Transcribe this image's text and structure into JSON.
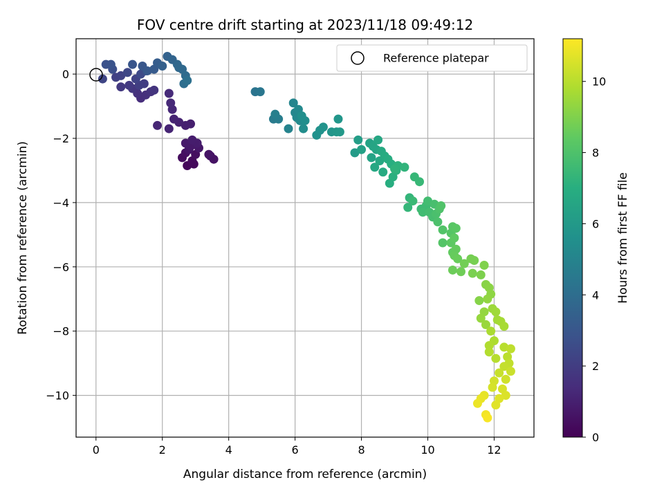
{
  "chart_data": {
    "type": "scatter",
    "title": "FOV centre drift starting at 2023/11/18 09:49:12",
    "xlabel": "Angular distance from reference (arcmin)",
    "ylabel": "Rotation from reference (arcmin)",
    "colorbar_label": "Hours from first FF file",
    "xlim": [
      -0.6,
      13.2
    ],
    "ylim": [
      -11.3,
      1.1
    ],
    "clim": [
      0,
      11.2
    ],
    "colormap": "viridis",
    "xticks": [
      0,
      2,
      4,
      6,
      8,
      10,
      12
    ],
    "yticks": [
      0,
      -2,
      -4,
      -6,
      -8,
      -10
    ],
    "colorbar_ticks": [
      0,
      2,
      4,
      6,
      8,
      10
    ],
    "grid": true,
    "legend": {
      "position": "top-right",
      "entries": [
        "Reference platepar"
      ]
    },
    "reference_point": {
      "x": 0,
      "y": 0
    },
    "points": [
      [
        2.75,
        -2.85,
        0.2
      ],
      [
        2.95,
        -2.8,
        0.25
      ],
      [
        2.9,
        -2.7,
        0.3
      ],
      [
        2.6,
        -2.6,
        0.35
      ],
      [
        3.0,
        -2.5,
        0.4
      ],
      [
        2.7,
        -2.45,
        0.45
      ],
      [
        3.45,
        -2.55,
        0.5
      ],
      [
        3.55,
        -2.65,
        0.55
      ],
      [
        3.4,
        -2.5,
        0.6
      ],
      [
        2.8,
        -2.35,
        0.65
      ],
      [
        3.1,
        -2.3,
        0.7
      ],
      [
        2.85,
        -2.25,
        0.75
      ],
      [
        2.7,
        -2.15,
        0.8
      ],
      [
        3.05,
        -2.15,
        0.85
      ],
      [
        2.9,
        -2.05,
        0.9
      ],
      [
        2.85,
        -1.55,
        0.95
      ],
      [
        2.7,
        -1.6,
        1.0
      ],
      [
        2.5,
        -1.5,
        1.05
      ],
      [
        2.35,
        -1.4,
        1.1
      ],
      [
        2.2,
        -1.7,
        1.15
      ],
      [
        1.85,
        -1.6,
        1.2
      ],
      [
        2.3,
        -1.1,
        1.25
      ],
      [
        2.25,
        -0.9,
        1.3
      ],
      [
        2.2,
        -0.6,
        1.35
      ],
      [
        1.35,
        -0.75,
        1.45
      ],
      [
        1.5,
        -0.65,
        1.5
      ],
      [
        1.25,
        -0.6,
        1.55
      ],
      [
        1.65,
        -0.55,
        1.6
      ],
      [
        1.75,
        -0.5,
        1.7
      ],
      [
        1.1,
        -0.45,
        1.75
      ],
      [
        0.75,
        -0.4,
        1.85
      ],
      [
        1.0,
        -0.35,
        1.9
      ],
      [
        1.45,
        -0.3,
        2.0
      ],
      [
        1.3,
        -0.35,
        2.05
      ],
      [
        0.6,
        -0.1,
        2.15
      ],
      [
        0.75,
        -0.05,
        2.2
      ],
      [
        1.2,
        -0.15,
        2.25
      ],
      [
        0.2,
        -0.15,
        2.3
      ],
      [
        0.95,
        0.05,
        2.4
      ],
      [
        1.35,
        0.0,
        2.5
      ],
      [
        1.5,
        0.1,
        2.6
      ],
      [
        0.5,
        0.15,
        2.7
      ],
      [
        0.3,
        0.3,
        2.8
      ],
      [
        0.45,
        0.3,
        2.85
      ],
      [
        1.1,
        0.3,
        2.95
      ],
      [
        1.4,
        0.25,
        3.0
      ],
      [
        1.55,
        0.1,
        3.1
      ],
      [
        1.75,
        0.15,
        3.2
      ],
      [
        1.85,
        0.35,
        3.3
      ],
      [
        2.0,
        0.25,
        3.4
      ],
      [
        2.15,
        0.55,
        3.5
      ],
      [
        2.3,
        0.45,
        3.6
      ],
      [
        2.45,
        0.3,
        3.7
      ],
      [
        2.5,
        0.2,
        3.75
      ],
      [
        2.6,
        0.15,
        3.8
      ],
      [
        2.7,
        -0.05,
        3.9
      ],
      [
        2.65,
        -0.3,
        4.0
      ],
      [
        2.75,
        -0.2,
        4.1
      ],
      [
        4.8,
        -0.55,
        4.3
      ],
      [
        4.95,
        -0.55,
        4.4
      ],
      [
        5.35,
        -1.4,
        4.6
      ],
      [
        5.5,
        -1.4,
        4.7
      ],
      [
        5.4,
        -1.25,
        4.8
      ],
      [
        5.8,
        -1.7,
        4.95
      ],
      [
        5.95,
        -0.9,
        5.05
      ],
      [
        6.0,
        -1.2,
        5.1
      ],
      [
        6.05,
        -1.35,
        5.2
      ],
      [
        6.1,
        -1.1,
        5.25
      ],
      [
        6.15,
        -1.45,
        5.3
      ],
      [
        6.25,
        -1.7,
        5.4
      ],
      [
        6.3,
        -1.45,
        5.45
      ],
      [
        6.2,
        -1.3,
        5.5
      ],
      [
        6.65,
        -1.9,
        5.6
      ],
      [
        6.75,
        -1.75,
        5.65
      ],
      [
        6.85,
        -1.65,
        5.7
      ],
      [
        7.1,
        -1.8,
        5.8
      ],
      [
        7.3,
        -1.4,
        5.85
      ],
      [
        7.25,
        -1.8,
        5.9
      ],
      [
        7.35,
        -1.8,
        5.95
      ],
      [
        7.8,
        -2.45,
        6.1
      ],
      [
        7.9,
        -2.05,
        6.2
      ],
      [
        8.0,
        -2.35,
        6.3
      ],
      [
        8.25,
        -2.15,
        6.4
      ],
      [
        8.3,
        -2.6,
        6.45
      ],
      [
        8.35,
        -2.25,
        6.5
      ],
      [
        8.45,
        -2.35,
        6.55
      ],
      [
        8.5,
        -2.05,
        6.6
      ],
      [
        8.4,
        -2.9,
        6.65
      ],
      [
        8.55,
        -2.7,
        6.7
      ],
      [
        8.6,
        -2.4,
        6.75
      ],
      [
        8.65,
        -3.05,
        6.8
      ],
      [
        8.7,
        -2.55,
        6.85
      ],
      [
        8.8,
        -2.65,
        6.9
      ],
      [
        8.85,
        -3.4,
        6.95
      ],
      [
        8.9,
        -2.8,
        7.0
      ],
      [
        8.95,
        -3.2,
        7.05
      ],
      [
        9.05,
        -3.0,
        7.1
      ],
      [
        9.1,
        -2.85,
        7.15
      ],
      [
        9.0,
        -2.95,
        7.2
      ],
      [
        9.3,
        -2.9,
        7.25
      ],
      [
        9.45,
        -3.85,
        7.3
      ],
      [
        9.4,
        -4.15,
        7.35
      ],
      [
        9.6,
        -3.2,
        7.4
      ],
      [
        9.75,
        -3.35,
        7.45
      ],
      [
        9.55,
        -3.95,
        7.5
      ],
      [
        9.8,
        -4.2,
        7.55
      ],
      [
        9.95,
        -4.1,
        7.6
      ],
      [
        9.85,
        -4.3,
        7.65
      ],
      [
        10.0,
        -3.95,
        7.7
      ],
      [
        10.05,
        -4.3,
        7.75
      ],
      [
        10.15,
        -4.45,
        7.8
      ],
      [
        10.2,
        -4.05,
        7.85
      ],
      [
        10.25,
        -4.35,
        7.9
      ],
      [
        10.3,
        -4.6,
        7.95
      ],
      [
        10.35,
        -4.2,
        8.0
      ],
      [
        10.4,
        -4.1,
        8.05
      ],
      [
        10.45,
        -4.85,
        8.1
      ],
      [
        10.45,
        -5.25,
        8.15
      ],
      [
        10.7,
        -4.95,
        8.2
      ],
      [
        10.75,
        -4.75,
        8.25
      ],
      [
        10.85,
        -4.8,
        8.3
      ],
      [
        10.7,
        -5.25,
        8.35
      ],
      [
        10.8,
        -5.1,
        8.4
      ],
      [
        10.75,
        -5.55,
        8.45
      ],
      [
        10.85,
        -5.45,
        8.5
      ],
      [
        10.8,
        -5.65,
        8.55
      ],
      [
        10.9,
        -5.75,
        8.6
      ],
      [
        10.75,
        -6.1,
        8.65
      ],
      [
        11.0,
        -6.15,
        8.7
      ],
      [
        11.1,
        -5.9,
        8.75
      ],
      [
        11.3,
        -5.75,
        8.8
      ],
      [
        11.4,
        -5.8,
        8.85
      ],
      [
        11.35,
        -6.2,
        8.9
      ],
      [
        11.6,
        -6.25,
        8.95
      ],
      [
        11.7,
        -5.95,
        9.0
      ],
      [
        11.55,
        -7.05,
        9.1
      ],
      [
        11.75,
        -6.55,
        9.15
      ],
      [
        11.85,
        -6.65,
        9.2
      ],
      [
        11.9,
        -6.85,
        9.25
      ],
      [
        11.8,
        -7.0,
        9.3
      ],
      [
        11.7,
        -7.4,
        9.35
      ],
      [
        11.6,
        -7.6,
        9.4
      ],
      [
        11.75,
        -7.8,
        9.45
      ],
      [
        11.95,
        -7.3,
        9.5
      ],
      [
        12.05,
        -7.4,
        9.55
      ],
      [
        12.1,
        -7.65,
        9.6
      ],
      [
        12.2,
        -7.7,
        9.65
      ],
      [
        12.3,
        -7.85,
        9.7
      ],
      [
        11.9,
        -8.0,
        9.75
      ],
      [
        12.0,
        -8.3,
        9.8
      ],
      [
        11.85,
        -8.45,
        9.85
      ],
      [
        11.85,
        -8.65,
        9.9
      ],
      [
        12.05,
        -8.85,
        9.95
      ],
      [
        12.3,
        -8.5,
        10.0
      ],
      [
        12.4,
        -8.8,
        10.05
      ],
      [
        12.5,
        -8.55,
        10.1
      ],
      [
        12.45,
        -9.0,
        10.15
      ],
      [
        12.3,
        -9.1,
        10.2
      ],
      [
        12.15,
        -9.3,
        10.25
      ],
      [
        12.5,
        -9.25,
        10.3
      ],
      [
        12.35,
        -9.5,
        10.4
      ],
      [
        12.0,
        -9.55,
        10.45
      ],
      [
        11.95,
        -9.75,
        10.5
      ],
      [
        12.25,
        -9.8,
        10.55
      ],
      [
        12.35,
        -10.0,
        10.6
      ],
      [
        12.15,
        -10.1,
        10.65
      ],
      [
        12.05,
        -10.3,
        10.7
      ],
      [
        11.7,
        -10.0,
        10.8
      ],
      [
        11.6,
        -10.1,
        10.85
      ],
      [
        11.5,
        -10.25,
        10.9
      ],
      [
        11.75,
        -10.6,
        11.0
      ],
      [
        11.8,
        -10.7,
        11.1
      ]
    ]
  }
}
